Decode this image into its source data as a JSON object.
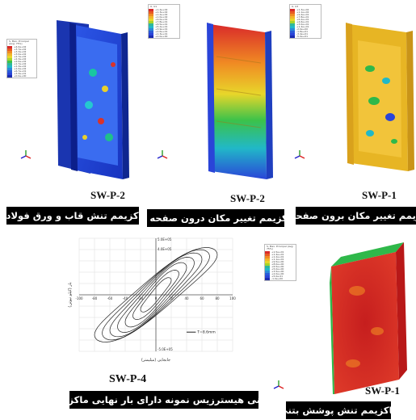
{
  "colors": {
    "caption_bg": "#000000",
    "caption_text": "#ffffff",
    "panel_blue": "#1f3fd8",
    "panel_green": "#2fb84a",
    "panel_red": "#d62c2c",
    "panel_yellow": "#e9b923",
    "curve": "#222222"
  },
  "panels": [
    {
      "id": "SW-P-2",
      "label": "SW-P-2",
      "caption": "ماکزیمم تنش قاب و ورق فولادی",
      "legend_header": "S, Max. Principal (Avg: 75%)",
      "legend_values": [
        "+4.0e+02",
        "+3.7e+02",
        "+3.3e+02",
        "+3.0e+02",
        "+2.7e+02",
        "+2.3e+02",
        "+2.0e+02",
        "+1.7e+02",
        "+1.3e+02",
        "+1.0e+02",
        "+6.7e+01",
        "+3.3e+01",
        "+0.0e+00"
      ]
    },
    {
      "id": "SW-P-2b",
      "label": "SW-P-2",
      "caption": "ماکزیمم تغییر مکان درون صفحه ای",
      "legend_header": "U, U1",
      "legend_values": [
        "+1.4e+02",
        "+1.3e+02",
        "+1.2e+02",
        "+1.0e+02",
        "+9.0e+01",
        "+7.8e+01",
        "+6.5e+01",
        "+5.2e+01",
        "+3.9e+01",
        "+2.6e+01",
        "+1.3e+01",
        "+0.0e+00"
      ]
    },
    {
      "id": "SW-P-1",
      "label": "SW-P-1",
      "caption": "ماکزیمم تغییر مکان برون صفحه ای",
      "legend_header": "U, U3",
      "legend_values": [
        "+1.3e+02",
        "+1.1e+02",
        "+9.4e+01",
        "+7.8e+01",
        "+6.2e+01",
        "+4.6e+01",
        "+3.0e+01",
        "+1.4e+01",
        "-2.0e+00",
        "-1.8e+01",
        "-3.4e+01",
        "-5.0e+01"
      ]
    },
    {
      "id": "SW-P-4",
      "label": "SW-P-4",
      "caption": "منحنی هیسترزیس نمونه دارای بار نهایی ماکزیمم"
    },
    {
      "id": "SW-P-1b",
      "label": "SW-P-1",
      "caption": "ماکزیمم تنش پوشش بتنی",
      "legend_header": "S, Max. Principal (Avg: 75%)",
      "legend_values": [
        "+1.5e+01",
        "+1.4e+01",
        "+1.2e+01",
        "+1.1e+01",
        "+9.5e+00",
        "+8.0e+00",
        "+6.5e+00",
        "+5.0e+00",
        "+3.5e+00",
        "+2.0e+00",
        "+5.0e-01",
        "-1.0e+00"
      ]
    }
  ],
  "chart_data": {
    "type": "line",
    "title": "",
    "xlabel": "جابجایی (میلیمتر)",
    "ylabel": "بار (کیلو نیوتن)",
    "xlim": [
      -100,
      100
    ],
    "ylim": [
      -500,
      500
    ],
    "x_ticks": [
      "-100",
      "-80",
      "-60",
      "-40",
      "-20",
      "0",
      "20",
      "40",
      "60",
      "80",
      "100"
    ],
    "y_tick_top": "5.0E+05",
    "y_tick_mid": "4.0E+05",
    "y_tick_bottom": "-5.0E+05",
    "grid": true,
    "legend_position": "bottom-right",
    "series": [
      {
        "name": "T=8.6mm",
        "loops": [
          {
            "amp": 20,
            "peak": 160
          },
          {
            "amp": 30,
            "peak": 230
          },
          {
            "amp": 40,
            "peak": 300
          },
          {
            "amp": 50,
            "peak": 350
          },
          {
            "amp": 60,
            "peak": 390
          },
          {
            "amp": 70,
            "peak": 420
          },
          {
            "amp": 80,
            "peak": 440
          }
        ]
      }
    ]
  }
}
